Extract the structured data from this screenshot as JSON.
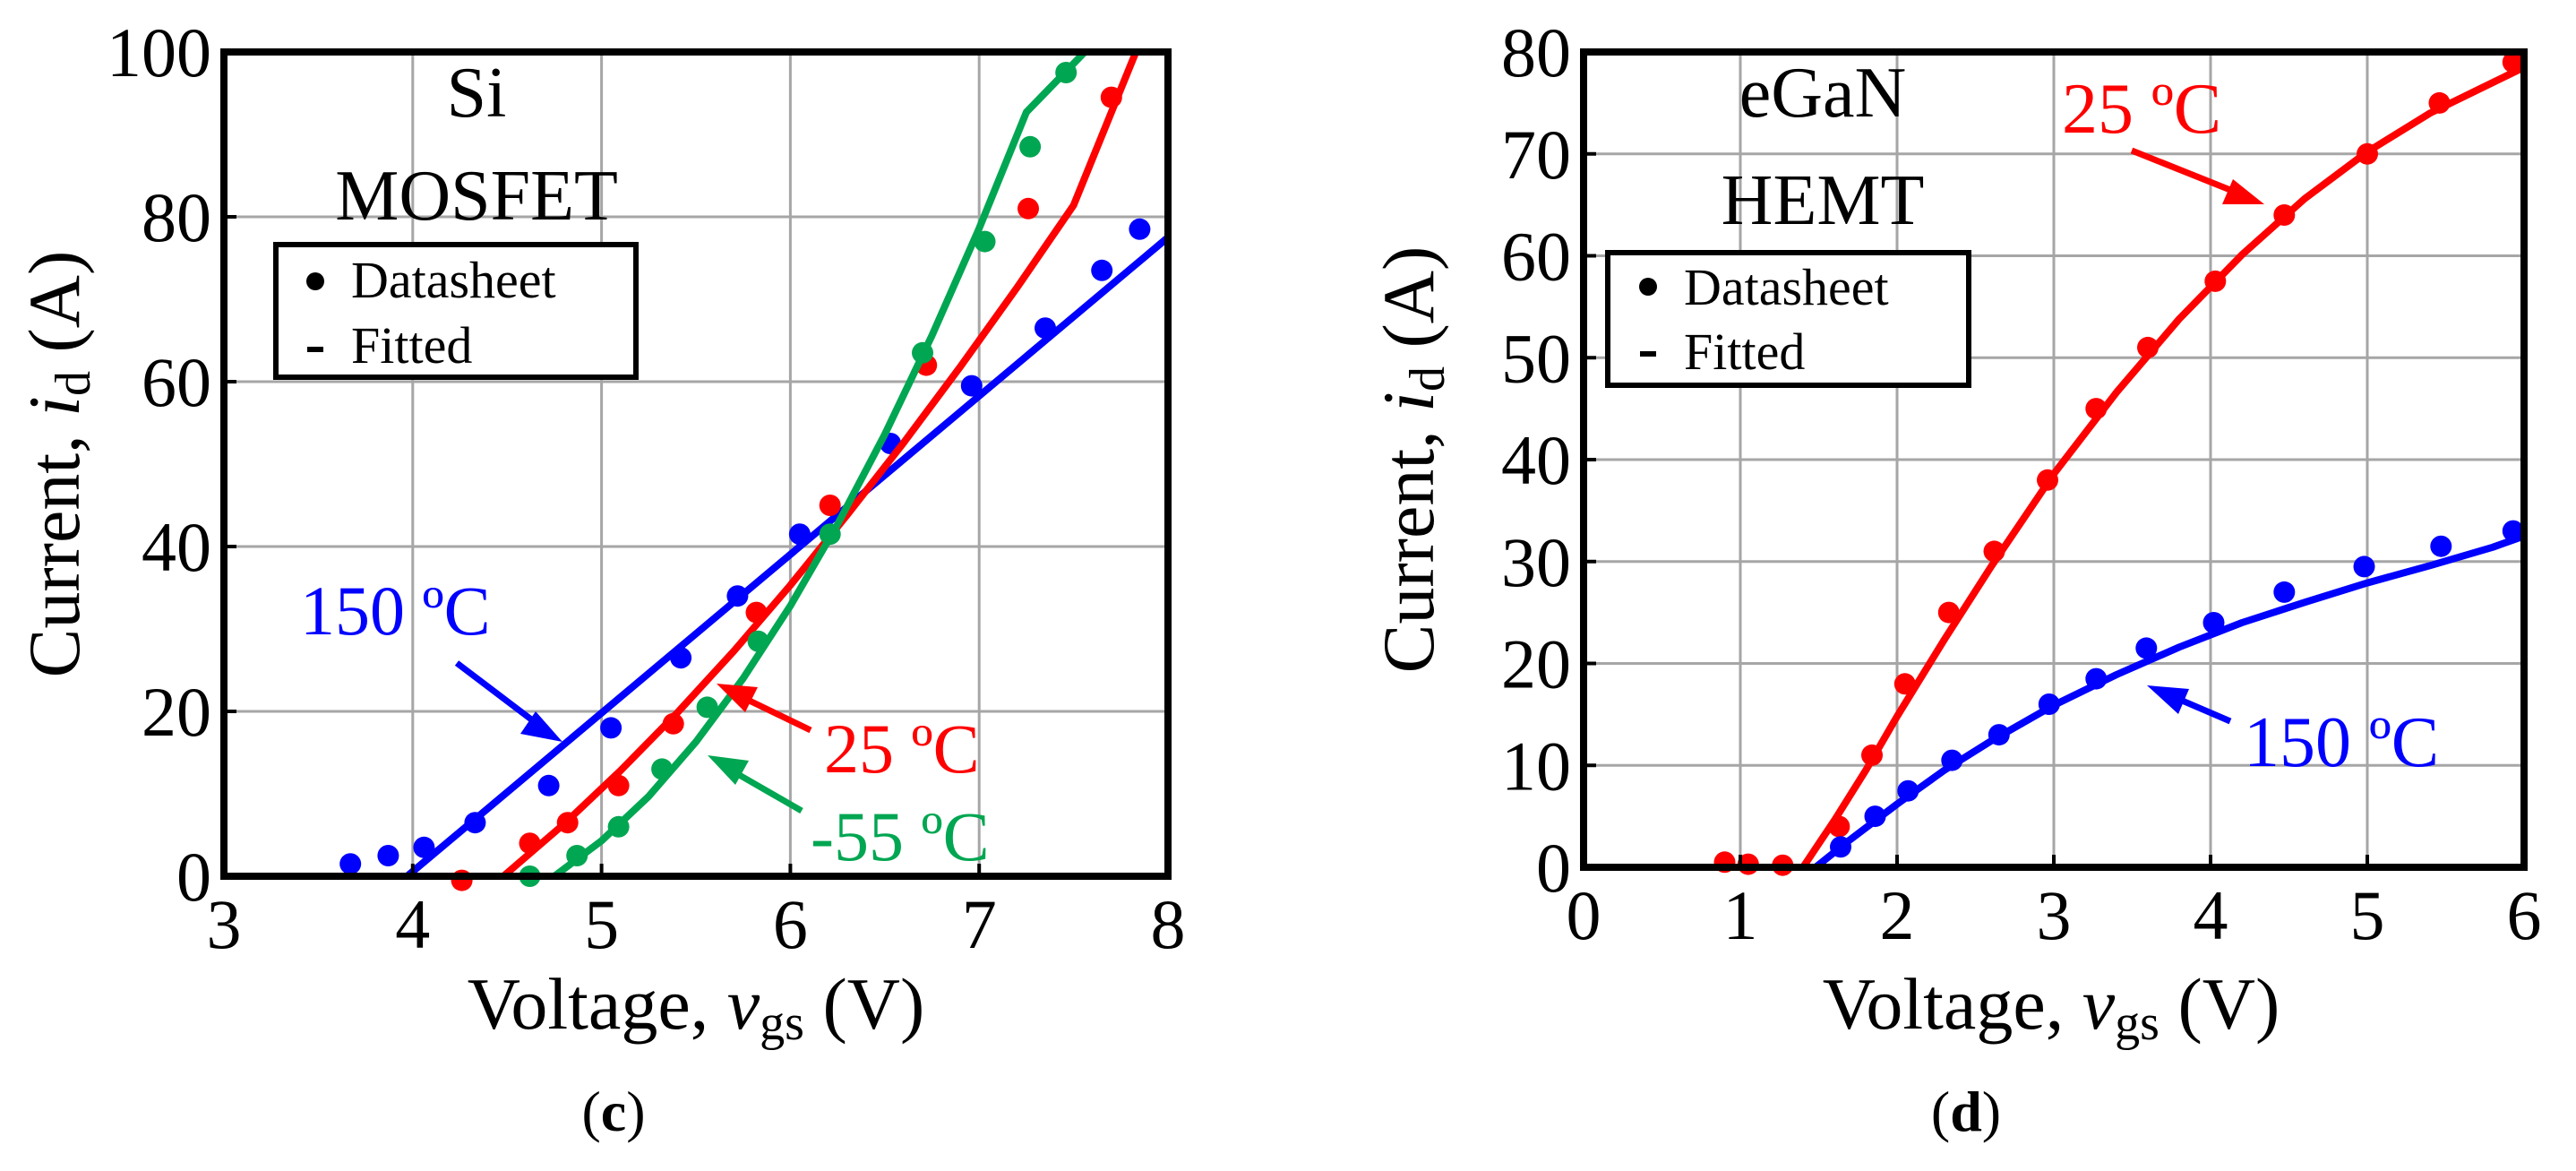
{
  "chart_data": [
    {
      "type": "scatter",
      "panel_label": "c",
      "title_lines": [
        "Si",
        "MOSFET"
      ],
      "xlabel_main": "Voltage, ",
      "xlabel_var": "v",
      "xlabel_sub": "gs",
      "xlabel_unit": " (V)",
      "ylabel_main": "Current, ",
      "ylabel_var": "i",
      "ylabel_sub": "d",
      "ylabel_unit": " (A)",
      "xlim": [
        3,
        8
      ],
      "ylim": [
        0,
        100
      ],
      "xticks": [
        3,
        4,
        5,
        6,
        7,
        8
      ],
      "yticks": [
        0,
        20,
        40,
        60,
        80,
        100
      ],
      "grid": true,
      "legend": {
        "position": "top-left",
        "entries": [
          {
            "marker": "dot",
            "label": "Datasheet"
          },
          {
            "marker": "dash",
            "label": "Fitted"
          }
        ]
      },
      "series": [
        {
          "name": "150 ºC",
          "color": "#0000ff",
          "datasheet": {
            "x": [
              3.67,
              3.87,
              4.06,
              4.33,
              4.72,
              5.05,
              5.42,
              5.72,
              6.05,
              6.53,
              6.96,
              7.35,
              7.65,
              7.85
            ],
            "y": [
              1.5,
              2.5,
              3.5,
              6.5,
              11,
              18,
              26.5,
              34,
              41.5,
              52.5,
              59.5,
              66.5,
              73.5,
              78.5
            ]
          },
          "fitted": {
            "x": [
              3.97,
              8.0
            ],
            "y": [
              0,
              77.5
            ]
          }
        },
        {
          "name": "25 ºC",
          "color": "#ff0000",
          "datasheet": {
            "x": [
              4.26,
              4.62,
              4.82,
              5.09,
              5.38,
              5.82,
              6.21,
              6.72,
              7.26,
              7.7
            ],
            "y": [
              -0.5,
              4,
              6.5,
              11,
              18.5,
              32,
              45,
              62,
              81,
              94.5
            ]
          },
          "fitted": {
            "x": [
              4.48,
              4.8,
              5.1,
              5.4,
              5.7,
              6.0,
              6.3,
              6.6,
              6.9,
              7.2,
              7.5,
              7.83
            ],
            "y": [
              0,
              6.3,
              12.8,
              19.8,
              27.3,
              35.3,
              43.8,
              52.6,
              61.8,
              71.4,
              81.4,
              100
            ]
          }
        },
        {
          "name": "-55 ºC",
          "color": "#00a651",
          "datasheet": {
            "x": [
              4.62,
              4.87,
              5.09,
              5.32,
              5.56,
              5.83,
              6.21,
              6.7,
              7.03,
              7.27,
              7.46
            ],
            "y": [
              0,
              2.5,
              6,
              13,
              20.5,
              28.5,
              41.5,
              63.5,
              77,
              88.5,
              97.5
            ]
          },
          "fitted": {
            "x": [
              4.75,
              5.0,
              5.25,
              5.5,
              5.75,
              6.0,
              6.25,
              6.5,
              6.75,
              7.0,
              7.25,
              7.56
            ],
            "y": [
              0,
              4.3,
              9.7,
              16.3,
              24.0,
              32.8,
              42.7,
              53.6,
              65.6,
              78.6,
              92.7,
              100
            ]
          }
        }
      ],
      "annotations": [
        "150 ºC",
        "25 ºC",
        "-55 ºC"
      ]
    },
    {
      "type": "scatter",
      "panel_label": "d",
      "title_lines": [
        "eGaN",
        "HEMT"
      ],
      "xlabel_main": "Voltage, ",
      "xlabel_var": "v",
      "xlabel_sub": "gs",
      "xlabel_unit": " (V)",
      "ylabel_main": "Current, ",
      "ylabel_var": "i",
      "ylabel_sub": "d",
      "ylabel_unit": " (A)",
      "xlim": [
        0,
        6
      ],
      "ylim": [
        0,
        80
      ],
      "xticks": [
        0,
        1,
        2,
        3,
        4,
        5,
        6
      ],
      "yticks": [
        0,
        10,
        20,
        30,
        40,
        50,
        60,
        70,
        80
      ],
      "grid": true,
      "legend": {
        "position": "top-left",
        "entries": [
          {
            "marker": "dot",
            "label": "Datasheet"
          },
          {
            "marker": "dash",
            "label": "Fitted"
          }
        ]
      },
      "series": [
        {
          "name": "25 ºC",
          "color": "#ff0000",
          "datasheet": {
            "x": [
              0.9,
              1.05,
              1.27,
              1.63,
              1.84,
              2.05,
              2.33,
              2.62,
              2.96,
              3.27,
              3.6,
              4.03,
              4.47,
              5.0,
              5.46,
              5.93
            ],
            "y": [
              0.5,
              0.3,
              0.2,
              4,
              11,
              18,
              25,
              31,
              38,
              45,
              51,
              57.5,
              64,
              70,
              75,
              79
            ]
          },
          "fitted": {
            "x": [
              1.4,
              1.6,
              1.8,
              2.0,
              2.3,
              2.6,
              3.0,
              3.4,
              3.8,
              4.2,
              4.6,
              5.0,
              5.4,
              5.8,
              6.0
            ],
            "y": [
              0,
              4.6,
              9.5,
              14.8,
              22.3,
              29.5,
              38.6,
              46.6,
              53.8,
              60.1,
              65.6,
              70.2,
              74.0,
              77.0,
              78.5
            ]
          }
        },
        {
          "name": "150 ºC",
          "color": "#0000ff",
          "datasheet": {
            "x": [
              1.64,
              1.86,
              2.07,
              2.35,
              2.65,
              2.97,
              3.27,
              3.59,
              4.02,
              4.47,
              4.98,
              5.47,
              5.93
            ],
            "y": [
              2,
              5,
              7.5,
              10.5,
              13,
              16,
              18.5,
              21.5,
              24,
              27,
              29.5,
              31.5,
              33
            ]
          },
          "fitted": {
            "x": [
              1.48,
              1.7,
              2.0,
              2.3,
              2.6,
              3.0,
              3.4,
              3.8,
              4.2,
              4.6,
              5.0,
              5.4,
              5.8,
              6.0
            ],
            "y": [
              0,
              2.7,
              6.2,
              9.5,
              12.4,
              15.9,
              18.9,
              21.6,
              24.0,
              26.0,
              27.9,
              29.6,
              31.4,
              32.5
            ]
          }
        }
      ],
      "annotations": [
        "25 ºC",
        "150 ºC"
      ]
    }
  ]
}
